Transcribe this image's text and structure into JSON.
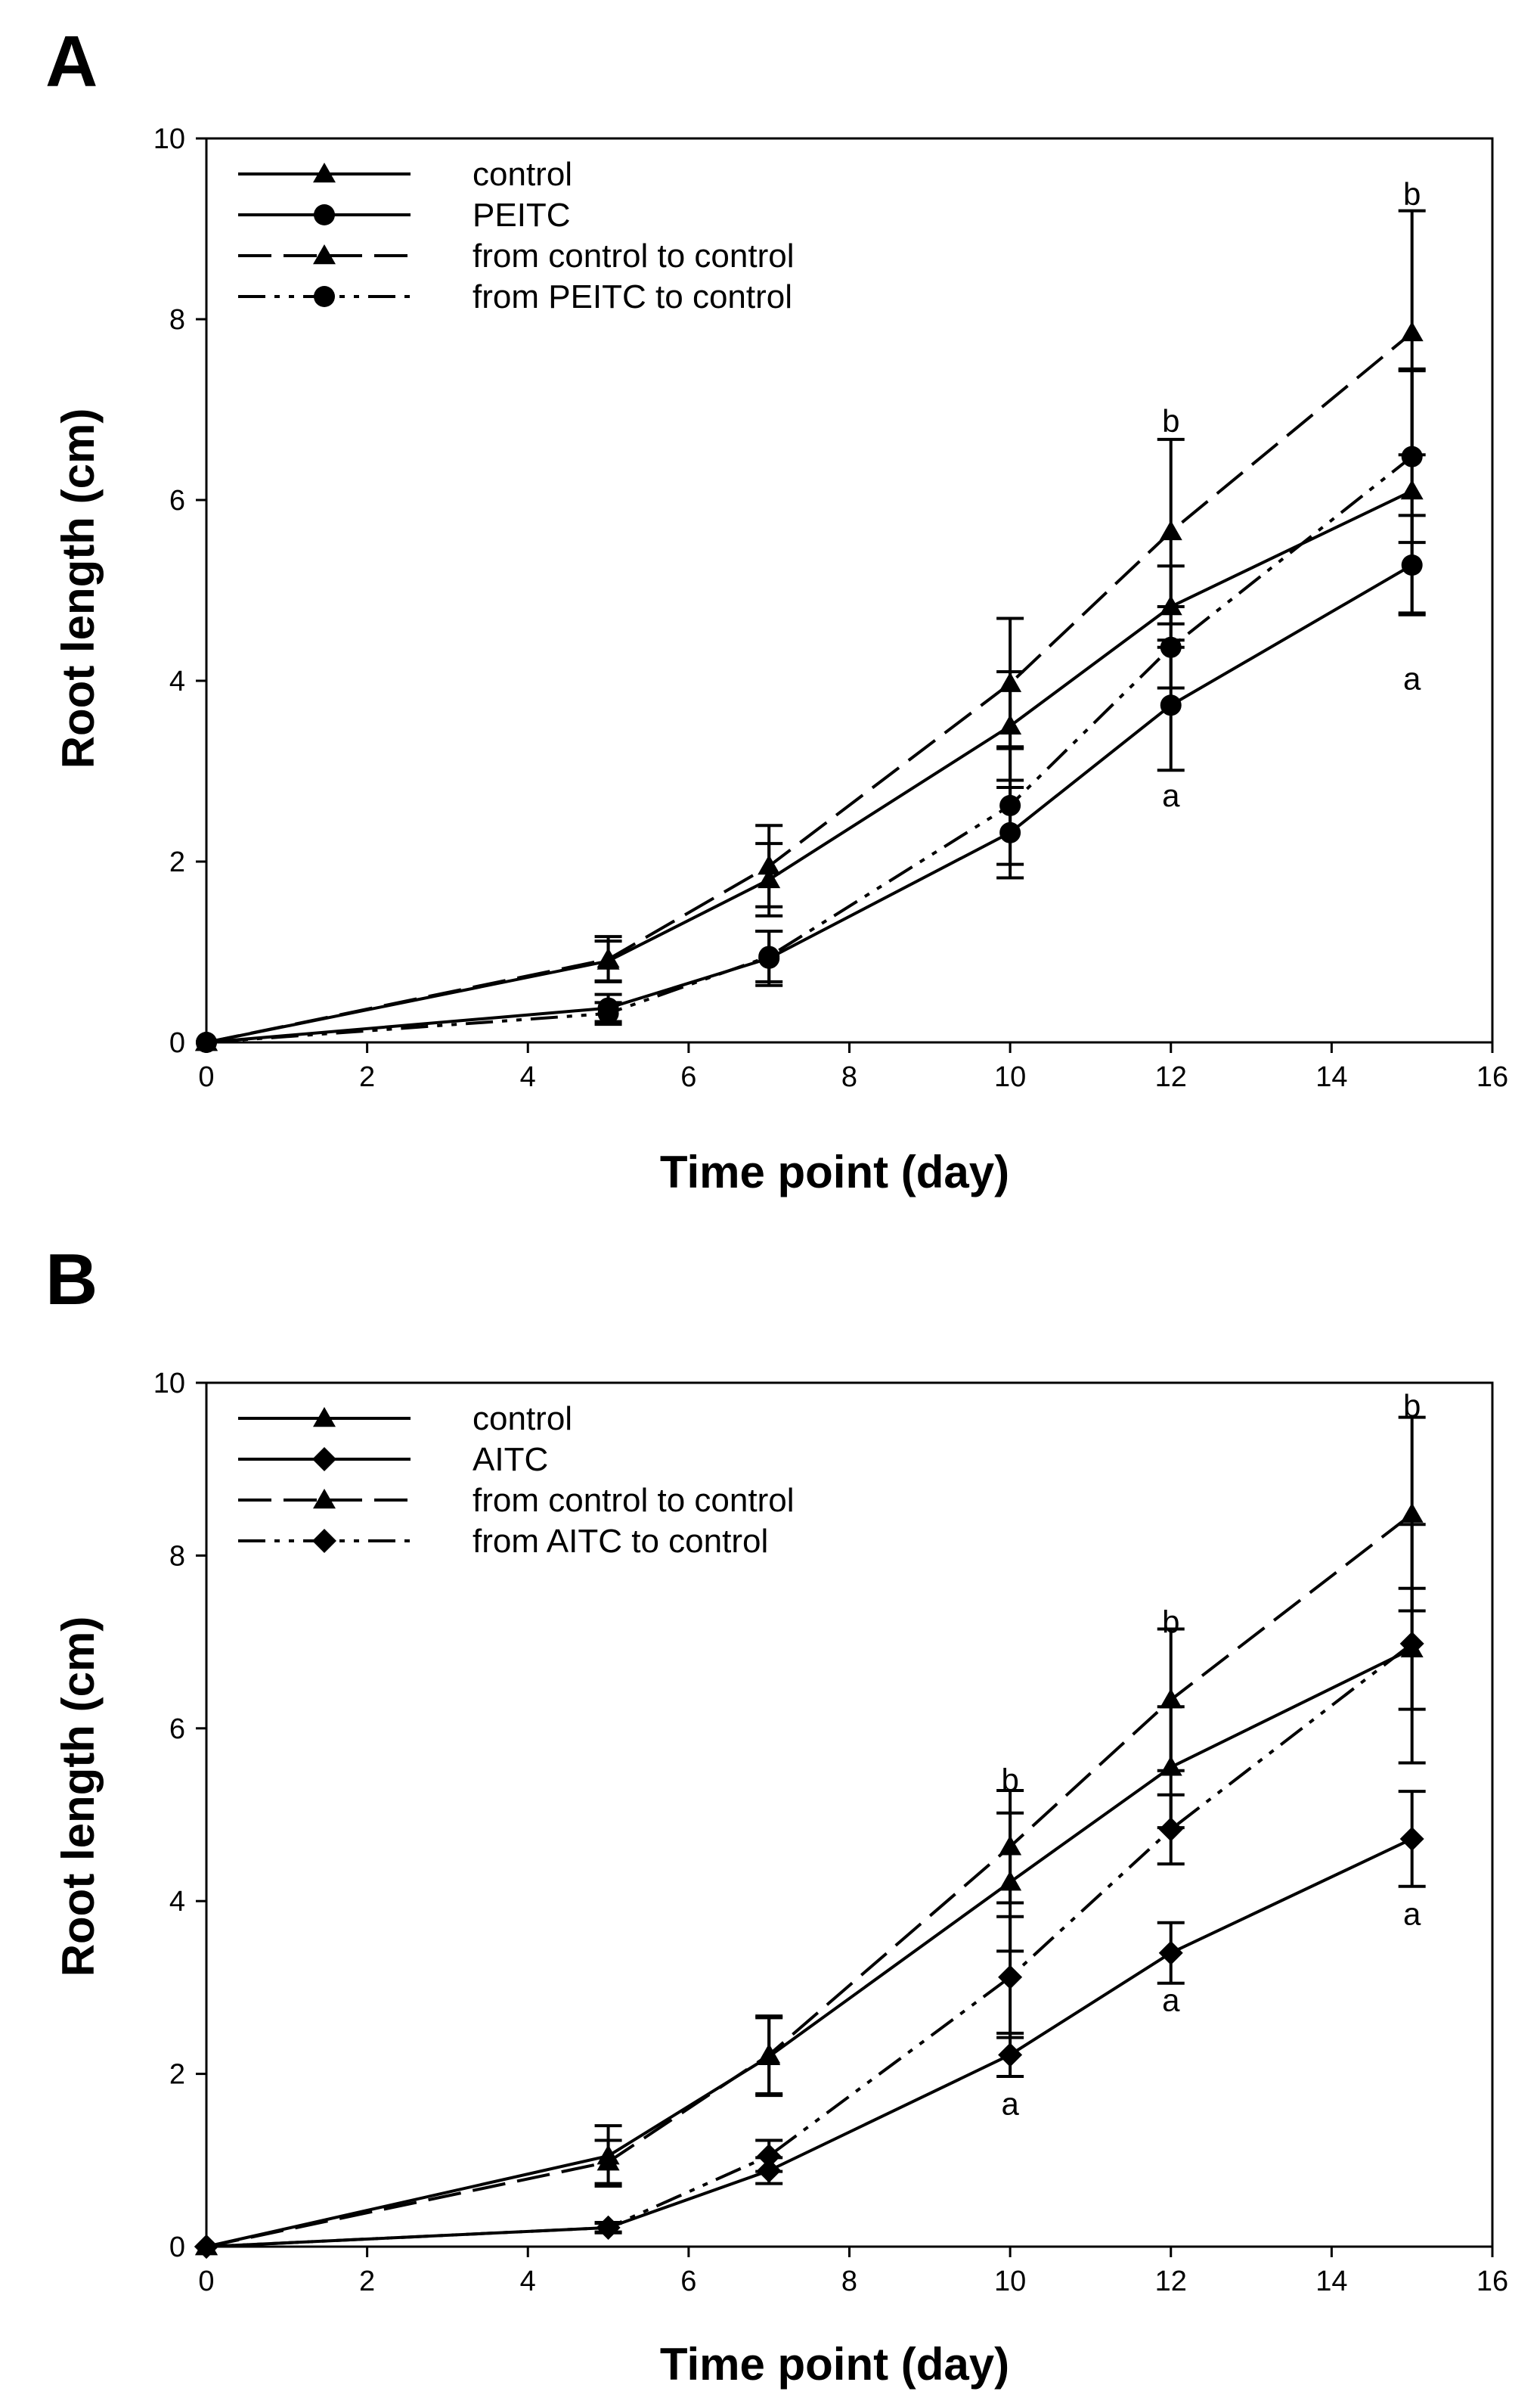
{
  "chart_data": [
    {
      "type": "line",
      "panel": "A",
      "xlabel": "Time point (day)",
      "ylabel": "Root length (cm)",
      "xlim": [
        0,
        16
      ],
      "ylim": [
        0,
        10
      ],
      "xticks": [
        0,
        2,
        4,
        6,
        8,
        10,
        12,
        14,
        16
      ],
      "yticks": [
        0,
        2,
        4,
        6,
        8,
        10
      ],
      "grid": false,
      "legend_position": "top-left",
      "x": [
        0,
        5,
        7,
        10,
        12,
        15
      ],
      "series": [
        {
          "name": "control",
          "line": "solid",
          "marker": "triangle",
          "values": [
            0,
            0.9,
            1.8,
            3.5,
            4.82,
            6.1
          ],
          "errors": [
            0,
            0.22,
            0.4,
            0.6,
            0.45,
            1.35
          ]
        },
        {
          "name": "PEITC",
          "line": "solid",
          "marker": "circle",
          "values": [
            0,
            0.38,
            0.93,
            2.32,
            3.73,
            5.28
          ],
          "errors": [
            0,
            0.15,
            0.3,
            0.5,
            0.72,
            0.55
          ]
        },
        {
          "name": "from control to control",
          "line": "dashed",
          "marker": "triangle",
          "values": [
            0,
            0.92,
            1.95,
            3.97,
            5.65,
            7.85
          ],
          "errors": [
            0,
            0.25,
            0.45,
            0.72,
            1.02,
            1.35
          ]
        },
        {
          "name": "from PEITC to control",
          "line": "dash-dot-dot",
          "marker": "circle",
          "values": [
            0,
            0.32,
            0.95,
            2.62,
            4.37,
            6.48
          ],
          "errors": [
            0,
            0.12,
            0.28,
            0.65,
            0.45,
            0.95
          ]
        }
      ],
      "annotations": [
        {
          "text": "b",
          "x": 15,
          "y": 9.38
        },
        {
          "text": "a",
          "x": 15,
          "y": 4.02
        },
        {
          "text": "b",
          "x": 12,
          "y": 6.87
        },
        {
          "text": "a",
          "x": 12,
          "y": 2.73
        }
      ]
    },
    {
      "type": "line",
      "panel": "B",
      "xlabel": "Time point (day)",
      "ylabel": "Root length (cm)",
      "xlim": [
        0,
        16
      ],
      "ylim": [
        0,
        10
      ],
      "xticks": [
        0,
        2,
        4,
        6,
        8,
        10,
        12,
        14,
        16
      ],
      "yticks": [
        0,
        2,
        4,
        6,
        8,
        10
      ],
      "grid": false,
      "legend_position": "top-left",
      "x": [
        0,
        5,
        7,
        10,
        12,
        15
      ],
      "series": [
        {
          "name": "control",
          "line": "solid",
          "marker": "triangle",
          "values": [
            0,
            1.05,
            2.2,
            4.22,
            5.55,
            6.92
          ],
          "errors": [
            0,
            0.35,
            0.45,
            0.8,
            0.7,
            0.7
          ]
        },
        {
          "name": "AITC",
          "line": "solid",
          "marker": "diamond",
          "values": [
            0,
            0.22,
            0.88,
            2.22,
            3.4,
            4.72
          ],
          "errors": [
            0,
            0.05,
            0.15,
            0.25,
            0.35,
            0.55
          ]
        },
        {
          "name": "from control to control",
          "line": "dashed",
          "marker": "triangle",
          "values": [
            0,
            0.98,
            2.22,
            4.63,
            6.33,
            8.48
          ],
          "errors": [
            0,
            0.25,
            0.45,
            0.65,
            0.82,
            1.12
          ]
        },
        {
          "name": "from AITC to control",
          "line": "dash-dot-dot",
          "marker": "diamond",
          "values": [
            0,
            0.22,
            1.05,
            3.12,
            4.83,
            6.98
          ],
          "errors": [
            0,
            0.06,
            0.18,
            0.7,
            0.4,
            1.38
          ]
        }
      ],
      "annotations": [
        {
          "text": "b",
          "x": 15,
          "y": 9.73
        },
        {
          "text": "a",
          "x": 15,
          "y": 3.85
        },
        {
          "text": "b",
          "x": 12,
          "y": 7.23
        },
        {
          "text": "a",
          "x": 12,
          "y": 2.85
        },
        {
          "text": "b",
          "x": 10,
          "y": 5.4
        },
        {
          "text": "a",
          "x": 10,
          "y": 1.65
        }
      ]
    }
  ]
}
